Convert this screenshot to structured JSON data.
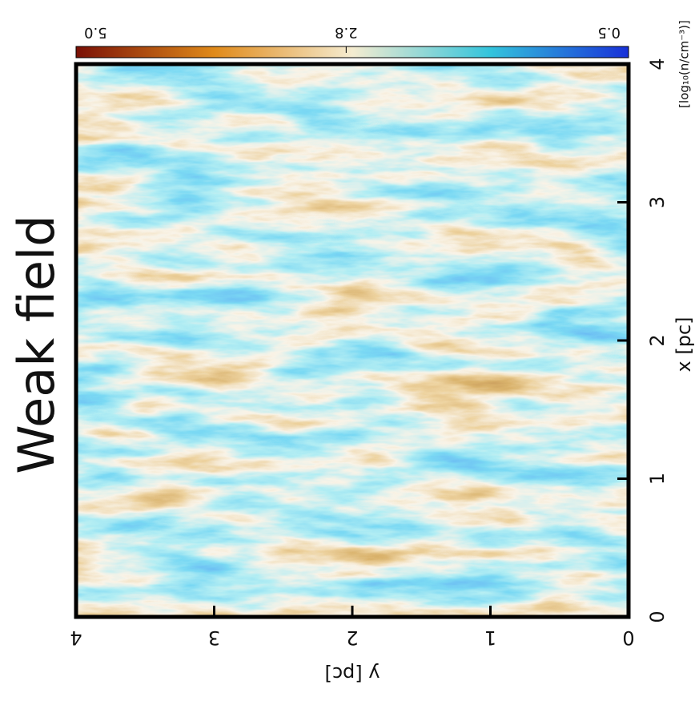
{
  "chart_data": {
    "type": "image",
    "title": "Weak field",
    "xlabel": "x [pc]",
    "ylabel": "y [pc]",
    "xlim": [
      0,
      4
    ],
    "ylim": [
      0,
      4
    ],
    "xticks": [
      0,
      1,
      2,
      3,
      4
    ],
    "yticks": [
      0,
      1,
      2,
      3,
      4
    ],
    "colorbar": {
      "label": "[log₁₀(n/cm⁻³)]",
      "lim": [
        0.5,
        5.0
      ],
      "ticks": [
        0.5,
        2.8,
        {
          "value": 5,
          "label": "5.0"
        }
      ]
    }
  }
}
